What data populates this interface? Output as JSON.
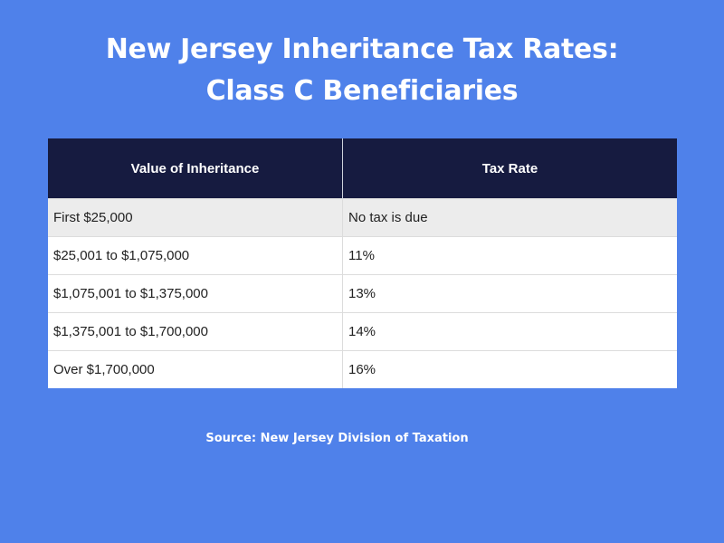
{
  "title": {
    "line1": "New Jersey Inheritance Tax Rates:",
    "line2": "Class C Beneficiaries"
  },
  "table": {
    "headers": [
      "Value of Inheritance",
      "Tax Rate"
    ],
    "rows": [
      [
        "First $25,000",
        "No tax is due"
      ],
      [
        "$25,001 to $1,075,000",
        "11%"
      ],
      [
        "$1,075,001 to $1,375,000",
        "13%"
      ],
      [
        "$1,375,001 to $1,700,000",
        "14%"
      ],
      [
        "Over $1,700,000",
        "16%"
      ]
    ]
  },
  "source": "Source: New Jersey Division of Taxation",
  "colors": {
    "background": "#4f81ea",
    "header": "#161b40",
    "shaded_row": "#ececec"
  }
}
